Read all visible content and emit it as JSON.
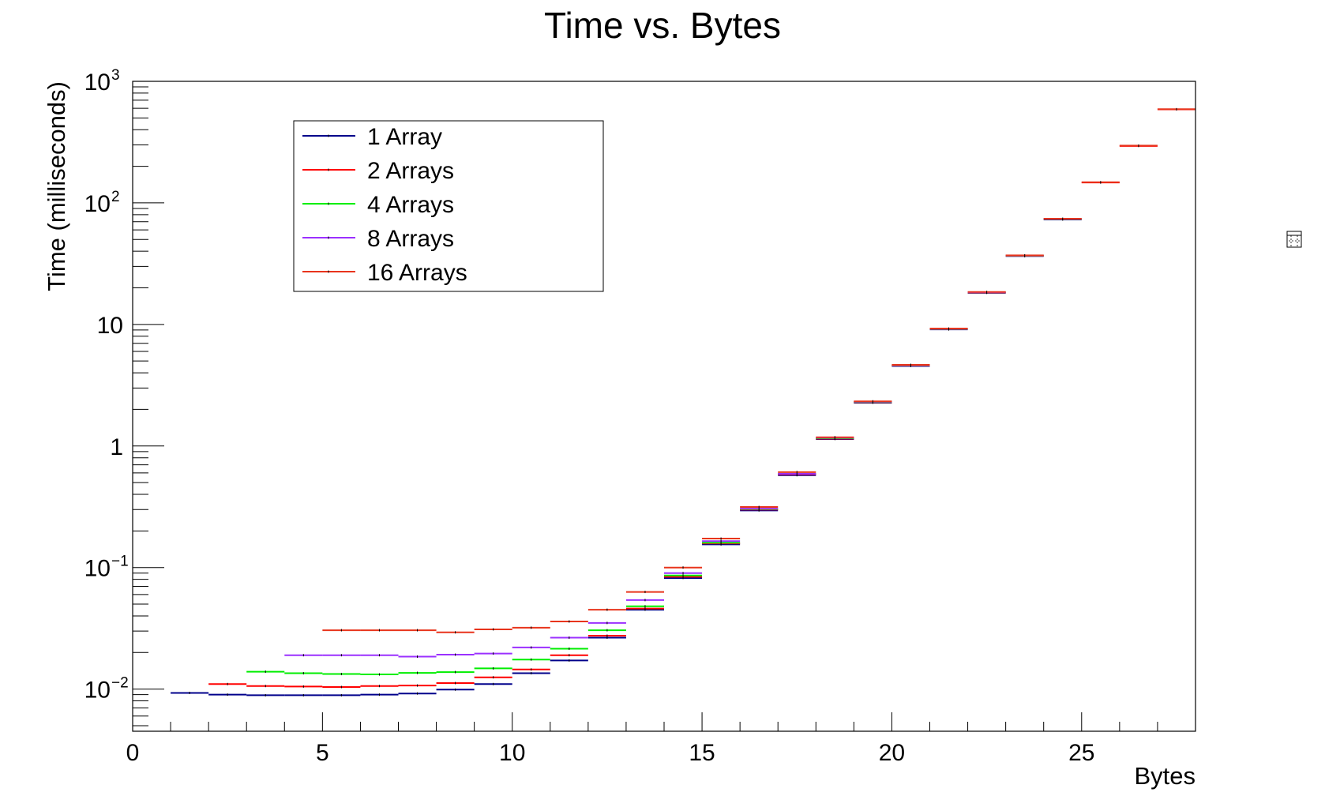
{
  "chart_data": {
    "type": "step",
    "title": "Time vs. Bytes",
    "xlabel": "Bytes",
    "ylabel": "Time (milliseconds)",
    "xlim": [
      0,
      28
    ],
    "ylim": [
      0.0045,
      1000
    ],
    "yscale": "log",
    "grid": false,
    "legend_position": "top-left",
    "x_ticks": [
      0,
      5,
      10,
      15,
      20,
      25
    ],
    "y_ticks": [
      {
        "value": 0.01,
        "base": "10",
        "exp": "−2"
      },
      {
        "value": 0.1,
        "base": "10",
        "exp": "−1"
      },
      {
        "value": 1,
        "base": "1",
        "exp": ""
      },
      {
        "value": 10,
        "base": "10",
        "exp": ""
      },
      {
        "value": 100,
        "base": "10",
        "exp": "2"
      },
      {
        "value": 1000,
        "base": "10",
        "exp": "3"
      }
    ],
    "series": [
      {
        "name": "1 Array",
        "color": "#00008b",
        "bins": [
          [
            1,
            0.0093
          ],
          [
            2,
            0.009
          ],
          [
            3,
            0.0089
          ],
          [
            4,
            0.0089
          ],
          [
            5,
            0.0089
          ],
          [
            6,
            0.009
          ],
          [
            7,
            0.0092
          ],
          [
            8,
            0.0099
          ],
          [
            9,
            0.011
          ],
          [
            10,
            0.0135
          ],
          [
            11,
            0.0172
          ],
          [
            12,
            0.0265
          ],
          [
            13,
            0.045
          ],
          [
            14,
            0.082
          ],
          [
            15,
            0.155
          ],
          [
            16,
            0.295
          ],
          [
            17,
            0.575
          ],
          [
            18,
            1.14
          ],
          [
            19,
            2.27
          ],
          [
            20,
            4.55
          ],
          [
            21,
            9.1
          ],
          [
            22,
            18.2
          ],
          [
            23,
            36.5
          ],
          [
            24,
            73.0
          ]
        ]
      },
      {
        "name": "2 Arrays",
        "color": "#ff0000",
        "bins": [
          [
            2,
            0.011
          ],
          [
            3,
            0.0106
          ],
          [
            4,
            0.0105
          ],
          [
            5,
            0.0104
          ],
          [
            6,
            0.0106
          ],
          [
            7,
            0.0107
          ],
          [
            8,
            0.0112
          ],
          [
            9,
            0.0125
          ],
          [
            10,
            0.0145
          ],
          [
            11,
            0.019
          ],
          [
            12,
            0.0275
          ],
          [
            13,
            0.046
          ],
          [
            14,
            0.084
          ],
          [
            15,
            0.158
          ],
          [
            16,
            0.3
          ],
          [
            17,
            0.585
          ],
          [
            18,
            1.15
          ],
          [
            19,
            2.29
          ],
          [
            20,
            4.58
          ],
          [
            21,
            9.15
          ],
          [
            22,
            18.3
          ],
          [
            23,
            36.7
          ],
          [
            24,
            73.5
          ],
          [
            25,
            147
          ],
          [
            26,
            294
          ],
          [
            27,
            588
          ]
        ]
      },
      {
        "name": "4 Arrays",
        "color": "#00ee00",
        "bins": [
          [
            3,
            0.0139
          ],
          [
            4,
            0.0135
          ],
          [
            5,
            0.0133
          ],
          [
            6,
            0.0132
          ],
          [
            7,
            0.0136
          ],
          [
            8,
            0.0138
          ],
          [
            9,
            0.0148
          ],
          [
            10,
            0.0175
          ],
          [
            11,
            0.0215
          ],
          [
            12,
            0.0305
          ],
          [
            13,
            0.048
          ],
          [
            14,
            0.086
          ],
          [
            15,
            0.16
          ],
          [
            16,
            0.303
          ],
          [
            17,
            0.59
          ],
          [
            18,
            1.16
          ],
          [
            19,
            2.3
          ],
          [
            20,
            4.6
          ],
          [
            21,
            9.18
          ],
          [
            22,
            18.4
          ],
          [
            23,
            36.8
          ],
          [
            24,
            73.6
          ]
        ]
      },
      {
        "name": "8 Arrays",
        "color": "#9b30ff",
        "bins": [
          [
            4,
            0.019
          ],
          [
            5,
            0.019
          ],
          [
            6,
            0.019
          ],
          [
            7,
            0.0185
          ],
          [
            8,
            0.0192
          ],
          [
            9,
            0.0196
          ],
          [
            10,
            0.022
          ],
          [
            11,
            0.0265
          ],
          [
            12,
            0.035
          ],
          [
            13,
            0.054
          ],
          [
            14,
            0.09
          ],
          [
            15,
            0.165
          ],
          [
            16,
            0.305
          ],
          [
            17,
            0.59
          ],
          [
            18,
            1.17
          ],
          [
            19,
            2.31
          ],
          [
            20,
            4.62
          ],
          [
            21,
            9.2
          ],
          [
            22,
            18.4
          ],
          [
            23,
            36.9
          ],
          [
            24,
            73.8
          ]
        ]
      },
      {
        "name": "16 Arrays",
        "color": "#e8341c",
        "bins": [
          [
            5,
            0.0305
          ],
          [
            6,
            0.0305
          ],
          [
            7,
            0.0305
          ],
          [
            8,
            0.0293
          ],
          [
            9,
            0.031
          ],
          [
            10,
            0.032
          ],
          [
            11,
            0.036
          ],
          [
            12,
            0.045
          ],
          [
            13,
            0.063
          ],
          [
            14,
            0.1
          ],
          [
            15,
            0.173
          ],
          [
            16,
            0.315
          ],
          [
            17,
            0.61
          ],
          [
            18,
            1.18
          ],
          [
            19,
            2.33
          ],
          [
            20,
            4.65
          ],
          [
            21,
            9.25
          ],
          [
            22,
            18.5
          ],
          [
            23,
            37.0
          ],
          [
            24,
            74.0
          ],
          [
            25,
            148
          ],
          [
            26,
            296
          ],
          [
            27,
            590
          ]
        ]
      }
    ]
  },
  "icons": {
    "corner_icon": "canvas-editor-icon"
  }
}
